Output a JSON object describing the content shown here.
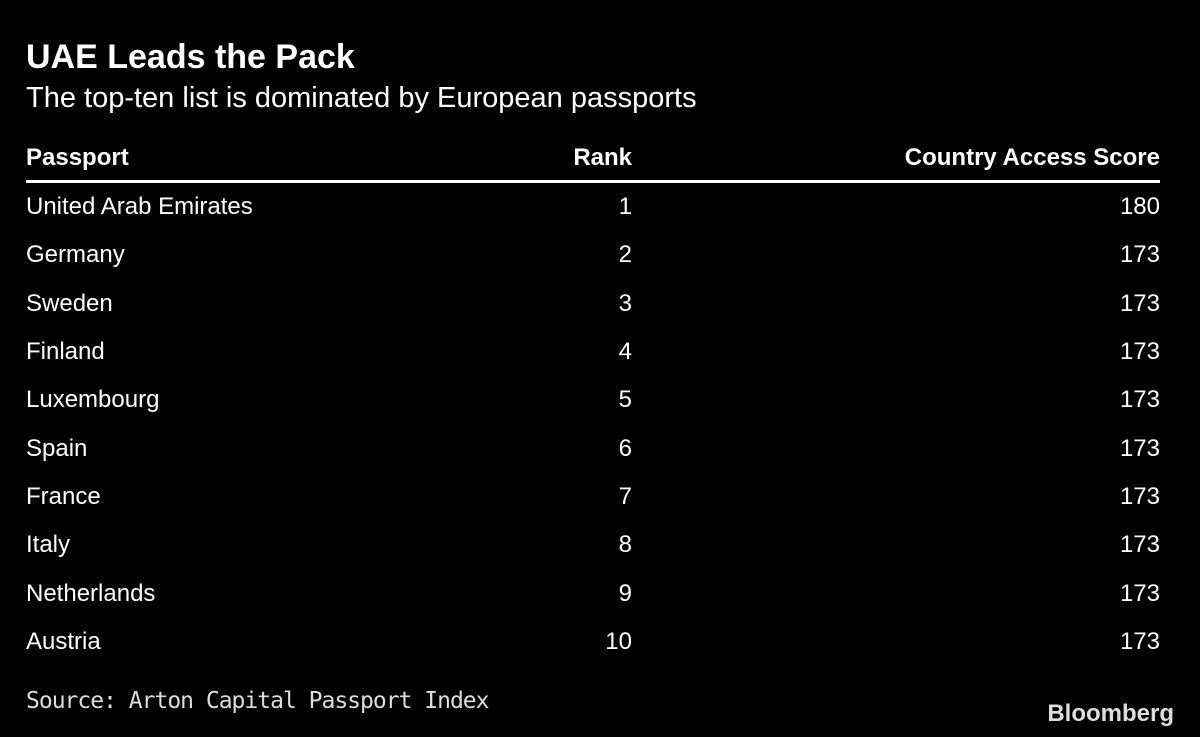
{
  "header": {
    "title": "UAE Leads the Pack",
    "subtitle": "The top-ten list is dominated by European passports"
  },
  "table": {
    "columns": [
      "Passport",
      "Rank",
      "Country Access Score"
    ],
    "rows": [
      [
        "United Arab Emirates",
        1,
        180
      ],
      [
        "Germany",
        2,
        173
      ],
      [
        "Sweden",
        3,
        173
      ],
      [
        "Finland",
        4,
        173
      ],
      [
        "Luxembourg",
        5,
        173
      ],
      [
        "Spain",
        6,
        173
      ],
      [
        "France",
        7,
        173
      ],
      [
        "Italy",
        8,
        173
      ],
      [
        "Netherlands",
        9,
        173
      ],
      [
        "Austria",
        10,
        173
      ]
    ]
  },
  "footer": {
    "source": "Source: Arton Capital Passport Index",
    "brand": "Bloomberg"
  }
}
